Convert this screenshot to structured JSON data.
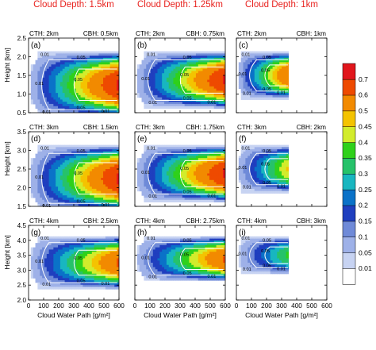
{
  "column_titles": [
    "Cloud Depth: 1.5km",
    "Cloud Depth: 1.25km",
    "Cloud Depth: 1km"
  ],
  "colorbar": {
    "levels": [
      "0.01",
      "0.05",
      "0.1",
      "0.15",
      "0.2",
      "0.25",
      "0.3",
      "0.35",
      "0.4",
      "0.45",
      "0.5",
      "0.6",
      "0.7"
    ],
    "colors": [
      "#ffffff",
      "#c7d3f2",
      "#9eb1e8",
      "#6f8ad8",
      "#1f3fbf",
      "#0a72c8",
      "#18b6c0",
      "#26c26a",
      "#2fd11a",
      "#d2ec2c",
      "#f4c300",
      "#f28a00",
      "#ee4a00",
      "#e1161c"
    ]
  },
  "x_axis": {
    "title": "Cloud Water Path [g/m²]",
    "ticks": [
      "0",
      "100",
      "200",
      "300",
      "400",
      "500",
      "600"
    ]
  },
  "y_axis": {
    "title": "Height [km]"
  },
  "chart_data": [
    {
      "type": "heatmap",
      "panel": "(a)",
      "cth": "CTH: 2km",
      "cbh": "CBH: 0.5km",
      "yticks": [
        "0.5",
        "1.0",
        "1.5",
        "2.0",
        "2.5"
      ],
      "ylim": [
        0.5,
        2.5
      ],
      "xlim": [
        0,
        600
      ],
      "cloud_base": 0.5,
      "cloud_top": 2.0,
      "cwp_max": 600,
      "peak": 0.7,
      "contour_labels": [
        "0.01",
        "0.05",
        "0.01",
        "0.05",
        "0.01",
        "0.05",
        "0.01"
      ]
    },
    {
      "type": "heatmap",
      "panel": "(b)",
      "cth": "CTH: 2km",
      "cbh": "CBH: 0.75km",
      "yticks": [
        "0.5",
        "1.0",
        "1.5",
        "2.0",
        "2.5"
      ],
      "ylim": [
        0.5,
        2.5
      ],
      "xlim": [
        0,
        600
      ],
      "cloud_base": 0.75,
      "cloud_top": 2.0,
      "cwp_max": 600,
      "peak": 0.7,
      "contour_labels": [
        "0.01",
        "0.05",
        "0.01",
        "0.05",
        "0.01",
        "0.05",
        "0.01"
      ]
    },
    {
      "type": "heatmap",
      "panel": "(c)",
      "cth": "CTH: 2km",
      "cbh": "CBH: 1km",
      "yticks": [
        "0.5",
        "1.0",
        "1.5",
        "2.0",
        "2.5"
      ],
      "ylim": [
        0.5,
        2.5
      ],
      "xlim": [
        0,
        600
      ],
      "cloud_base": 1.0,
      "cloud_top": 2.0,
      "cwp_max": 350,
      "peak": 0.6,
      "contour_labels": [
        "0.01",
        "0.05",
        "0.01",
        "0.05",
        "0.01",
        "0.05",
        "0.01"
      ]
    },
    {
      "type": "heatmap",
      "panel": "(d)",
      "cth": "CTH: 3km",
      "cbh": "CBH: 1.5km",
      "yticks": [
        "1.5",
        "2.0",
        "2.5",
        "3.0",
        "3.5"
      ],
      "ylim": [
        1.5,
        3.5
      ],
      "xlim": [
        0,
        600
      ],
      "cloud_base": 1.5,
      "cloud_top": 3.0,
      "cwp_max": 600,
      "peak": 0.7,
      "contour_labels": [
        "0.01",
        "0.05",
        "0.01",
        "0.05",
        "0.01",
        "0.05",
        "0.01"
      ]
    },
    {
      "type": "heatmap",
      "panel": "(e)",
      "cth": "CTH: 3km",
      "cbh": "CBH: 1.75km",
      "yticks": [
        "1.5",
        "2.0",
        "2.5",
        "3.0",
        "3.5"
      ],
      "ylim": [
        1.5,
        3.5
      ],
      "xlim": [
        0,
        600
      ],
      "cloud_base": 1.75,
      "cloud_top": 3.0,
      "cwp_max": 600,
      "peak": 0.7,
      "contour_labels": [
        "0.01",
        "0.05",
        "0.01",
        "0.05",
        "0.01",
        "0.05",
        "0.01"
      ]
    },
    {
      "type": "heatmap",
      "panel": "(f)",
      "cth": "CTH: 3km",
      "cbh": "CBH: 2km",
      "yticks": [
        "1.5",
        "2.0",
        "2.5",
        "3.0",
        "3.5"
      ],
      "ylim": [
        1.5,
        3.5
      ],
      "xlim": [
        0,
        600
      ],
      "cloud_base": 2.0,
      "cloud_top": 3.0,
      "cwp_max": 350,
      "peak": 0.45,
      "contour_labels": [
        "0.01",
        "0.05",
        "0.01",
        "0.05",
        "0.01",
        "0.05",
        "0.01"
      ]
    },
    {
      "type": "heatmap",
      "panel": "(g)",
      "cth": "CTH: 4km",
      "cbh": "CBH: 2.5km",
      "yticks": [
        "2.0",
        "2.5",
        "3.0",
        "3.5",
        "4.0",
        "4.5"
      ],
      "ylim": [
        2.0,
        4.5
      ],
      "xlim": [
        0,
        600
      ],
      "cloud_base": 2.5,
      "cloud_top": 4.0,
      "cwp_max": 600,
      "peak": 0.6,
      "contour_labels": [
        "0.01",
        "0.05",
        "0.01",
        "0.05",
        "0.01",
        "0.05",
        "0.01"
      ]
    },
    {
      "type": "heatmap",
      "panel": "(h)",
      "cth": "CTH: 4km",
      "cbh": "CBH: 2.75km",
      "yticks": [
        "2.0",
        "2.5",
        "3.0",
        "3.5",
        "4.0",
        "4.5"
      ],
      "ylim": [
        2.0,
        4.5
      ],
      "xlim": [
        0,
        600
      ],
      "cloud_base": 2.75,
      "cloud_top": 4.0,
      "cwp_max": 600,
      "peak": 0.6,
      "contour_labels": [
        "0.01",
        "0.05",
        "0.01",
        "0.05",
        "0.01",
        "0.05",
        "0.01"
      ]
    },
    {
      "type": "heatmap",
      "panel": "(i)",
      "cth": "CTH: 4km",
      "cbh": "CBH: 3km",
      "yticks": [
        "2.0",
        "2.5",
        "3.0",
        "3.5",
        "4.0",
        "4.5"
      ],
      "ylim": [
        2.0,
        4.5
      ],
      "xlim": [
        0,
        600
      ],
      "cloud_base": 3.0,
      "cloud_top": 4.0,
      "cwp_max": 350,
      "peak": 0.35,
      "contour_labels": [
        "0.01",
        "0.05",
        "0.01",
        "0.05",
        "0.01",
        "0.05",
        "0.01"
      ]
    }
  ]
}
